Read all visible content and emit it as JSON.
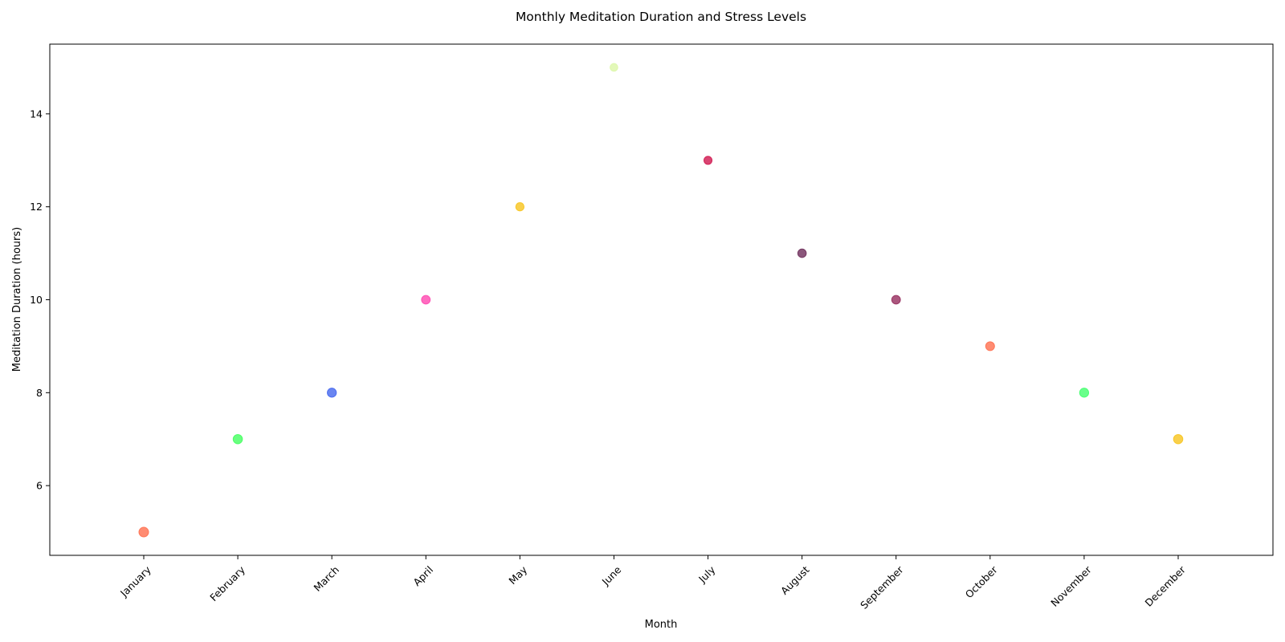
{
  "chart_data": {
    "type": "scatter",
    "title": "Monthly Meditation Duration and Stress Levels",
    "xlabel": "Month",
    "ylabel": "Meditation Duration (hours)",
    "categories": [
      "January",
      "February",
      "March",
      "April",
      "May",
      "June",
      "July",
      "August",
      "September",
      "October",
      "November",
      "December"
    ],
    "values": [
      5,
      7,
      8,
      10,
      12,
      15,
      13,
      11,
      10,
      9,
      8,
      7
    ],
    "colors": [
      "#ff6f4f",
      "#44ff5f",
      "#4466ee",
      "#ff47b0",
      "#f7c41e",
      "#dcf6a8",
      "#d0174f",
      "#6e2d5a",
      "#962d5e",
      "#ff6f4f",
      "#44ff6e",
      "#f7c41e"
    ],
    "ylim": [
      4.5,
      15.5
    ],
    "yticks": [
      6,
      8,
      10,
      12,
      14
    ],
    "grid": false,
    "legend": "none"
  }
}
